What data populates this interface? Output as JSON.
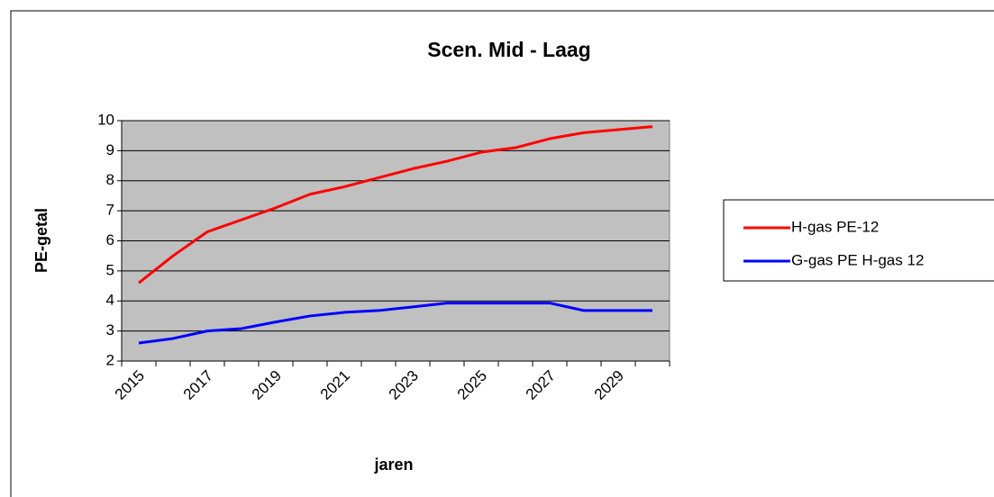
{
  "chart_data": {
    "type": "line",
    "title": "Scen. Mid - Laag",
    "xlabel": "jaren",
    "ylabel": "PE-getal",
    "categories": [
      "2015",
      null,
      "2017",
      null,
      "2019",
      null,
      "2021",
      null,
      "2023",
      null,
      "2025",
      null,
      "2027",
      null,
      "2029",
      null
    ],
    "series": [
      {
        "name": "H-gas PE-12",
        "color": "#ff0000",
        "values": [
          4.6,
          5.5,
          6.3,
          6.7,
          7.1,
          7.55,
          7.8,
          8.1,
          8.4,
          8.65,
          8.95,
          9.1,
          9.4,
          9.6,
          9.7,
          9.8
        ]
      },
      {
        "name": "G-gas PE H-gas 12",
        "color": "#0000ff",
        "values": [
          2.6,
          2.75,
          3.0,
          3.08,
          3.3,
          3.5,
          3.62,
          3.68,
          3.8,
          3.93,
          3.93,
          3.93,
          3.93,
          3.68,
          3.68,
          3.68
        ]
      }
    ],
    "ylim": [
      2,
      10
    ],
    "yticks": [
      2,
      3,
      4,
      5,
      6,
      7,
      8,
      9,
      10
    ],
    "grid": true,
    "legend": "right",
    "plot_background": "#c0c0c0"
  }
}
